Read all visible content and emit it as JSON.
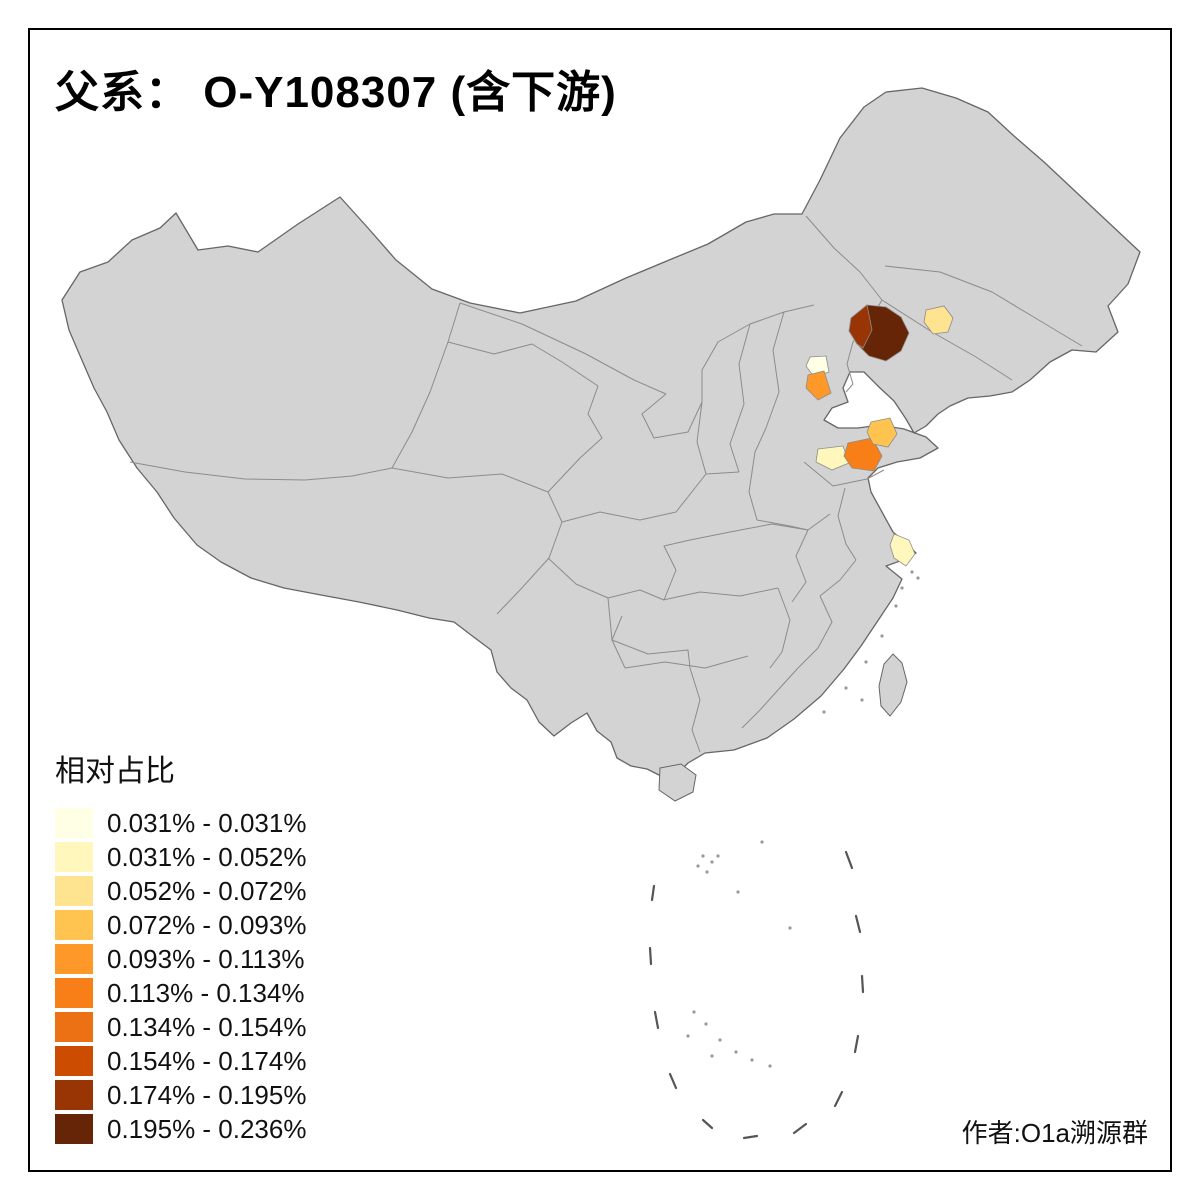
{
  "title": "父系： O-Y108307 (含下游)",
  "legend": {
    "title": "相对占比",
    "entries": [
      {
        "label": "0.031% - 0.031%",
        "color": "#FFFFE5"
      },
      {
        "label": "0.031% - 0.052%",
        "color": "#FFF7BC"
      },
      {
        "label": "0.052% - 0.072%",
        "color": "#FEE391"
      },
      {
        "label": "0.072% - 0.093%",
        "color": "#FEC44F"
      },
      {
        "label": "0.093% - 0.113%",
        "color": "#FE9929"
      },
      {
        "label": "0.113% - 0.134%",
        "color": "#F87F17"
      },
      {
        "label": "0.134% - 0.154%",
        "color": "#EC7014"
      },
      {
        "label": "0.154% - 0.174%",
        "color": "#CC4C02"
      },
      {
        "label": "0.174% - 0.195%",
        "color": "#993404"
      },
      {
        "label": "0.195% - 0.236%",
        "color": "#662506"
      }
    ]
  },
  "credit": "作者:O1a溯源群",
  "map": {
    "base_fill": "#D3D3D3",
    "national_border_color": "#666666",
    "province_border_color": "#8C8C8C",
    "dash_line_color": "#555555",
    "regions": [
      {
        "id": "liaoning-west",
        "color": "#662506"
      },
      {
        "id": "liaoning-west-edge",
        "color": "#993404"
      },
      {
        "id": "jilin-central",
        "color": "#FEE391"
      },
      {
        "id": "beijing",
        "color": "#FFFFE5"
      },
      {
        "id": "tianjin",
        "color": "#FE9929"
      },
      {
        "id": "shandong-west",
        "color": "#FFF7BC"
      },
      {
        "id": "shandong-central",
        "color": "#F87F17"
      },
      {
        "id": "shandong-peninsula",
        "color": "#FEC44F"
      },
      {
        "id": "shanghai-area",
        "color": "#FFF7BC"
      }
    ]
  }
}
